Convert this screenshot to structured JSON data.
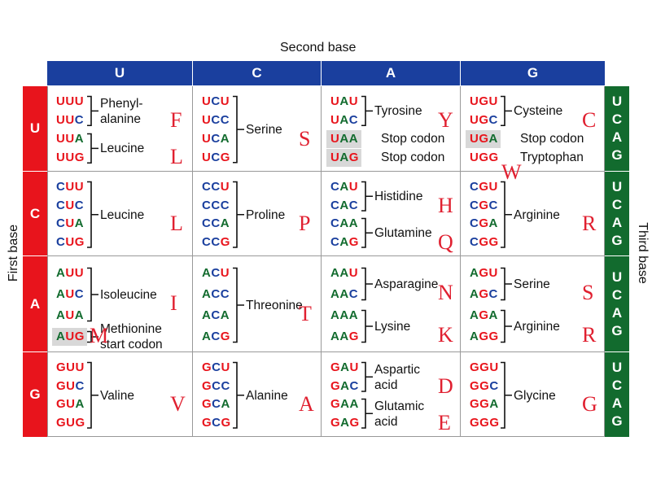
{
  "header": {
    "second_base": "Second base",
    "first_base": "First base",
    "third_base": "Third base",
    "columns": [
      "U",
      "C",
      "A",
      "G"
    ],
    "rows": [
      "U",
      "C",
      "A",
      "G"
    ],
    "third_labels": [
      "U",
      "C",
      "A",
      "G"
    ]
  },
  "colors": {
    "U": "#e8141c",
    "C": "#1a3f9e",
    "A": "#126b2e",
    "G": "#e8141c"
  },
  "cells": [
    [
      {
        "codons": [
          "UUU",
          "UUC",
          "UUA",
          "UUG"
        ],
        "groups": [
          {
            "from": 0,
            "to": 1,
            "label": "Phenyl-\nalanine",
            "letter": "F"
          },
          {
            "from": 2,
            "to": 3,
            "label": "Leucine",
            "letter": "L"
          }
        ],
        "highlight": []
      },
      {
        "codons": [
          "UCU",
          "UCC",
          "UCA",
          "UCG"
        ],
        "groups": [
          {
            "from": 0,
            "to": 3,
            "label": "Serine",
            "letter": "S"
          }
        ],
        "highlight": []
      },
      {
        "codons": [
          "UAU",
          "UAC",
          "UAA",
          "UAG"
        ],
        "groups": [
          {
            "from": 0,
            "to": 1,
            "label": "Tyrosine",
            "letter": "Y"
          },
          {
            "from": 2,
            "to": 2,
            "label": "Stop codon",
            "letter": ""
          },
          {
            "from": 3,
            "to": 3,
            "label": "Stop codon",
            "letter": ""
          }
        ],
        "highlight": [
          2,
          3
        ]
      },
      {
        "codons": [
          "UGU",
          "UGC",
          "UGA",
          "UGG"
        ],
        "groups": [
          {
            "from": 0,
            "to": 1,
            "label": "Cysteine",
            "letter": "C"
          },
          {
            "from": 2,
            "to": 2,
            "label": "Stop codon",
            "letter": ""
          },
          {
            "from": 3,
            "to": 3,
            "label": "Tryptophan",
            "letter": "W"
          }
        ],
        "highlight": [
          2
        ]
      }
    ],
    [
      {
        "codons": [
          "CUU",
          "CUC",
          "CUA",
          "CUG"
        ],
        "groups": [
          {
            "from": 0,
            "to": 3,
            "label": "Leucine",
            "letter": "L"
          }
        ],
        "highlight": []
      },
      {
        "codons": [
          "CCU",
          "CCC",
          "CCA",
          "CCG"
        ],
        "groups": [
          {
            "from": 0,
            "to": 3,
            "label": "Proline",
            "letter": "P"
          }
        ],
        "highlight": []
      },
      {
        "codons": [
          "CAU",
          "CAC",
          "CAA",
          "CAG"
        ],
        "groups": [
          {
            "from": 0,
            "to": 1,
            "label": "Histidine",
            "letter": "H"
          },
          {
            "from": 2,
            "to": 3,
            "label": "Glutamine",
            "letter": "Q"
          }
        ],
        "highlight": []
      },
      {
        "codons": [
          "CGU",
          "CGC",
          "CGA",
          "CGG"
        ],
        "groups": [
          {
            "from": 0,
            "to": 3,
            "label": "Arginine",
            "letter": "R"
          }
        ],
        "highlight": []
      }
    ],
    [
      {
        "codons": [
          "AUU",
          "AUC",
          "AUA",
          "AUG"
        ],
        "groups": [
          {
            "from": 0,
            "to": 2,
            "label": "Isoleucine",
            "letter": "I"
          },
          {
            "from": 3,
            "to": 3,
            "label": "Methionine\nstart codon",
            "letter": "M"
          }
        ],
        "highlight": [
          3
        ]
      },
      {
        "codons": [
          "ACU",
          "ACC",
          "ACA",
          "ACG"
        ],
        "groups": [
          {
            "from": 0,
            "to": 3,
            "label": "Threonine",
            "letter": "T"
          }
        ],
        "highlight": []
      },
      {
        "codons": [
          "AAU",
          "AAC",
          "AAA",
          "AAG"
        ],
        "groups": [
          {
            "from": 0,
            "to": 1,
            "label": "Asparagine",
            "letter": "N"
          },
          {
            "from": 2,
            "to": 3,
            "label": "Lysine",
            "letter": "K"
          }
        ],
        "highlight": []
      },
      {
        "codons": [
          "AGU",
          "AGC",
          "AGA",
          "AGG"
        ],
        "groups": [
          {
            "from": 0,
            "to": 1,
            "label": "Serine",
            "letter": "S"
          },
          {
            "from": 2,
            "to": 3,
            "label": "Arginine",
            "letter": "R"
          }
        ],
        "highlight": []
      }
    ],
    [
      {
        "codons": [
          "GUU",
          "GUC",
          "GUA",
          "GUG"
        ],
        "groups": [
          {
            "from": 0,
            "to": 3,
            "label": "Valine",
            "letter": "V"
          }
        ],
        "highlight": []
      },
      {
        "codons": [
          "GCU",
          "GCC",
          "GCA",
          "GCG"
        ],
        "groups": [
          {
            "from": 0,
            "to": 3,
            "label": "Alanine",
            "letter": "A"
          }
        ],
        "highlight": []
      },
      {
        "codons": [
          "GAU",
          "GAC",
          "GAA",
          "GAG"
        ],
        "groups": [
          {
            "from": 0,
            "to": 1,
            "label": "Aspartic\nacid",
            "letter": "D"
          },
          {
            "from": 2,
            "to": 3,
            "label": "Glutamic\nacid",
            "letter": "E"
          }
        ],
        "highlight": []
      },
      {
        "codons": [
          "GGU",
          "GGC",
          "GGA",
          "GGG"
        ],
        "groups": [
          {
            "from": 0,
            "to": 3,
            "label": "Glycine",
            "letter": "G"
          }
        ],
        "highlight": []
      }
    ]
  ]
}
